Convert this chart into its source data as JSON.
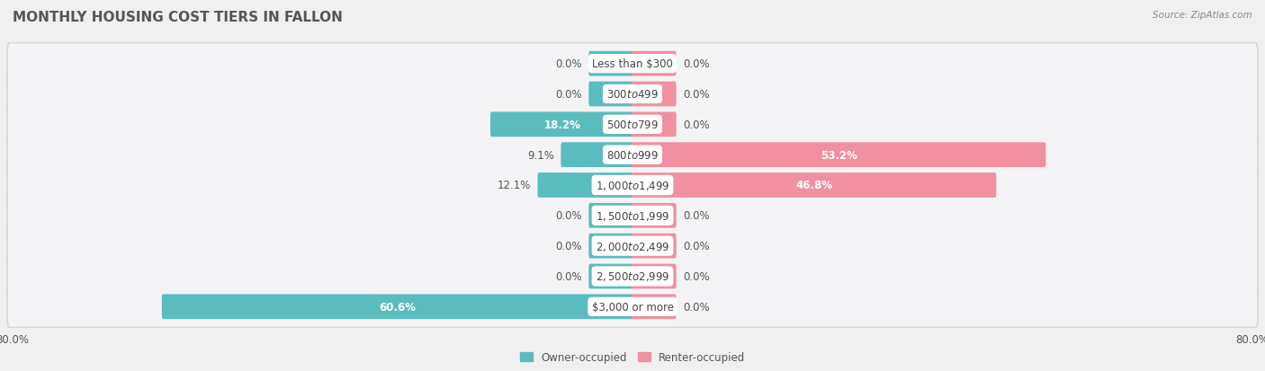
{
  "title": "MONTHLY HOUSING COST TIERS IN FALLON",
  "source": "Source: ZipAtlas.com",
  "categories": [
    "Less than $300",
    "$300 to $499",
    "$500 to $799",
    "$800 to $999",
    "$1,000 to $1,499",
    "$1,500 to $1,999",
    "$2,000 to $2,499",
    "$2,500 to $2,999",
    "$3,000 or more"
  ],
  "owner_values": [
    0.0,
    0.0,
    18.2,
    9.1,
    12.1,
    0.0,
    0.0,
    0.0,
    60.6
  ],
  "renter_values": [
    0.0,
    0.0,
    0.0,
    53.2,
    46.8,
    0.0,
    0.0,
    0.0,
    0.0
  ],
  "owner_color": "#5bbcbf",
  "renter_color": "#f090a0",
  "axis_max": 80.0,
  "fig_bg": "#f0f0f0",
  "row_bg": "#e8e8e8",
  "row_inner_bg": "#f7f7f7",
  "title_fontsize": 11,
  "label_fontsize": 8.5,
  "tick_fontsize": 8.5,
  "source_fontsize": 7.5,
  "min_bar_owner": 5.0,
  "min_bar_renter": 5.0
}
